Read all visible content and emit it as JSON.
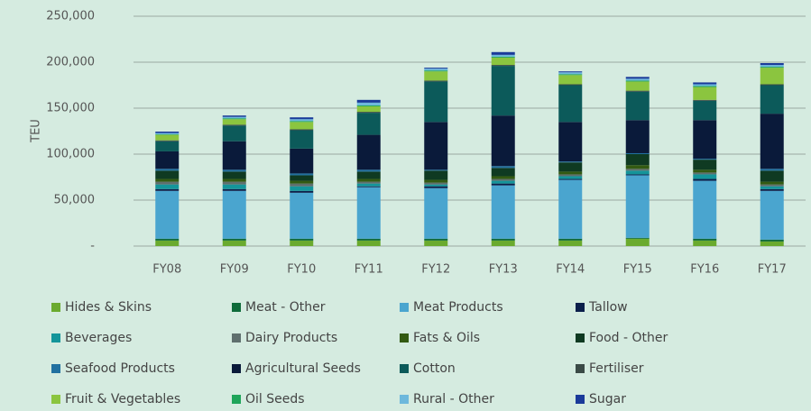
{
  "chart_data": {
    "type": "stacked_bar",
    "y_label": "TEU",
    "categories": [
      "FY08",
      "FY09",
      "FY10",
      "FY11",
      "FY12",
      "FY13",
      "FY14",
      "FY15",
      "FY16",
      "FY17"
    ],
    "ylim": [
      0,
      250000
    ],
    "yticks": [
      {
        "value": 0,
        "label": "-"
      },
      {
        "value": 50000,
        "label": "50,000"
      },
      {
        "value": 100000,
        "label": "100,000"
      },
      {
        "value": 150000,
        "label": "150,000"
      },
      {
        "value": 200000,
        "label": "200,000"
      },
      {
        "value": 250000,
        "label": "250,000"
      }
    ],
    "grid": true,
    "series": [
      {
        "name": "Hides & Skins",
        "color": "#6aaa2e",
        "values": [
          6000,
          6000,
          6000,
          6000,
          6000,
          6000,
          6000,
          8000,
          6000,
          5000
        ]
      },
      {
        "name": "Meat - Other",
        "color": "#0f6b3a",
        "values": [
          2000,
          2000,
          2000,
          2000,
          2000,
          2000,
          2000,
          1000,
          2000,
          2000
        ]
      },
      {
        "name": "Meat Products",
        "color": "#4aa5cf",
        "values": [
          52000,
          52000,
          50000,
          56000,
          55000,
          58000,
          64000,
          68000,
          63000,
          53000
        ]
      },
      {
        "name": "Tallow",
        "color": "#0b1f4b",
        "values": [
          2000,
          2000,
          2000,
          1000,
          2000,
          2000,
          1000,
          1000,
          2000,
          2000
        ]
      },
      {
        "name": "Beverages",
        "color": "#14959a",
        "values": [
          5000,
          5000,
          5000,
          3000,
          2000,
          3000,
          3000,
          4000,
          5000,
          3000
        ]
      },
      {
        "name": "Dairy Products",
        "color": "#5f6f6e",
        "values": [
          3000,
          3000,
          3000,
          2000,
          2000,
          2000,
          2000,
          2000,
          2000,
          2000
        ]
      },
      {
        "name": "Fats & Oils",
        "color": "#335a12",
        "values": [
          3000,
          3000,
          3000,
          3000,
          3000,
          3000,
          3000,
          4000,
          3000,
          3000
        ]
      },
      {
        "name": "Food - Other",
        "color": "#0f3a22",
        "values": [
          9000,
          8000,
          6000,
          8000,
          10000,
          9000,
          10000,
          12000,
          11000,
          12000
        ]
      },
      {
        "name": "Seafood Products",
        "color": "#2170a0",
        "values": [
          2000,
          2000,
          2000,
          2000,
          1000,
          2000,
          1000,
          1000,
          1000,
          2000
        ]
      },
      {
        "name": "Agricultural Seeds",
        "color": "#0a1a3a",
        "values": [
          19000,
          31000,
          27000,
          38000,
          52000,
          55000,
          43000,
          36000,
          42000,
          60000
        ]
      },
      {
        "name": "Cotton",
        "color": "#0c5a5a",
        "values": [
          11000,
          17000,
          20000,
          24000,
          44000,
          54000,
          40000,
          31000,
          21000,
          31000
        ]
      },
      {
        "name": "Fertiliser",
        "color": "#3a4a46",
        "values": [
          1000,
          1000,
          1000,
          1000,
          1000,
          1000,
          1000,
          1000,
          1000,
          1000
        ]
      },
      {
        "name": "Fruit & Vegetables",
        "color": "#8bc53f",
        "values": [
          6000,
          6000,
          8000,
          6000,
          10000,
          8000,
          10000,
          10000,
          14000,
          18000
        ]
      },
      {
        "name": "Oil Seeds",
        "color": "#1fa55a",
        "values": [
          500,
          1000,
          1000,
          1000,
          1000,
          1000,
          1000,
          1000,
          1000,
          1000
        ]
      },
      {
        "name": "Rural - Other",
        "color": "#6db8dc",
        "values": [
          1500,
          1500,
          2000,
          3000,
          2000,
          2000,
          2000,
          2000,
          2000,
          2000
        ]
      },
      {
        "name": "Sugar",
        "color": "#1a3a9a",
        "values": [
          1500,
          1500,
          2000,
          3000,
          1000,
          3000,
          1000,
          2000,
          2000,
          2000
        ]
      }
    ]
  }
}
